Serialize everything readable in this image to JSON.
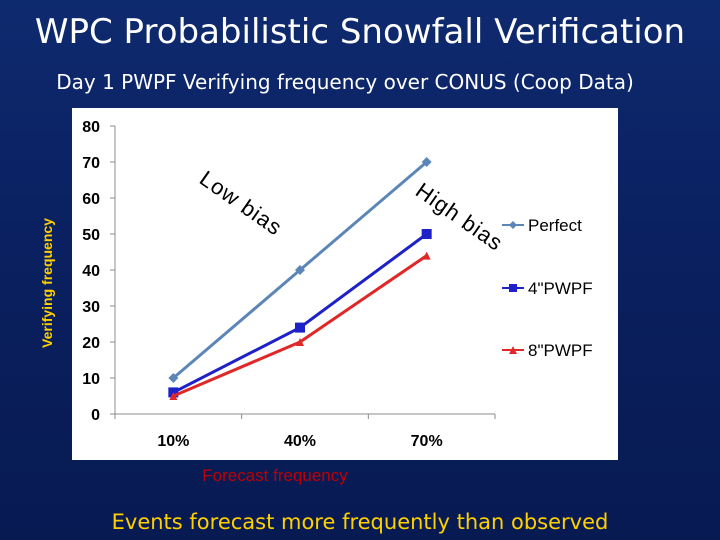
{
  "slide": {
    "title": "WPC Probabilistic Snowfall Verification",
    "subtitle": "Day 1 PWPF Verifying frequency over CONUS (Coop Data)",
    "footer": "Events forecast more frequently than observed"
  },
  "colors": {
    "background": "#0a2060",
    "perfect": "#5b86b7",
    "pwpf4": "#1e20c8",
    "pwpf8": "#e02828",
    "ylabel": "#ffd000",
    "xlabel": "#c00000",
    "footer": "#ffd000"
  },
  "chart_data": {
    "type": "line",
    "title": "",
    "xlabel": "Forecast frequency",
    "ylabel": "Verifying frequency",
    "categories": [
      "10%",
      "40%",
      "70%"
    ],
    "ylim": [
      0,
      80
    ],
    "yticks": [
      "0",
      "10",
      "20",
      "30",
      "40",
      "50",
      "60",
      "70",
      "80"
    ],
    "grid": false,
    "legend_position": "right",
    "series": [
      {
        "name": "Perfect",
        "values": [
          10,
          40,
          70
        ],
        "marker": "diamond",
        "color": "#5b86b7"
      },
      {
        "name": "4\"PWPF",
        "values": [
          6,
          24,
          50
        ],
        "marker": "square",
        "color": "#1e20c8"
      },
      {
        "name": "8\"PWPF",
        "values": [
          5,
          20,
          44
        ],
        "marker": "triangle",
        "color": "#e02828"
      }
    ],
    "annotations": [
      {
        "text": "Low bias",
        "color": "#000000"
      },
      {
        "text": "High bias",
        "color": "#000000"
      }
    ]
  }
}
